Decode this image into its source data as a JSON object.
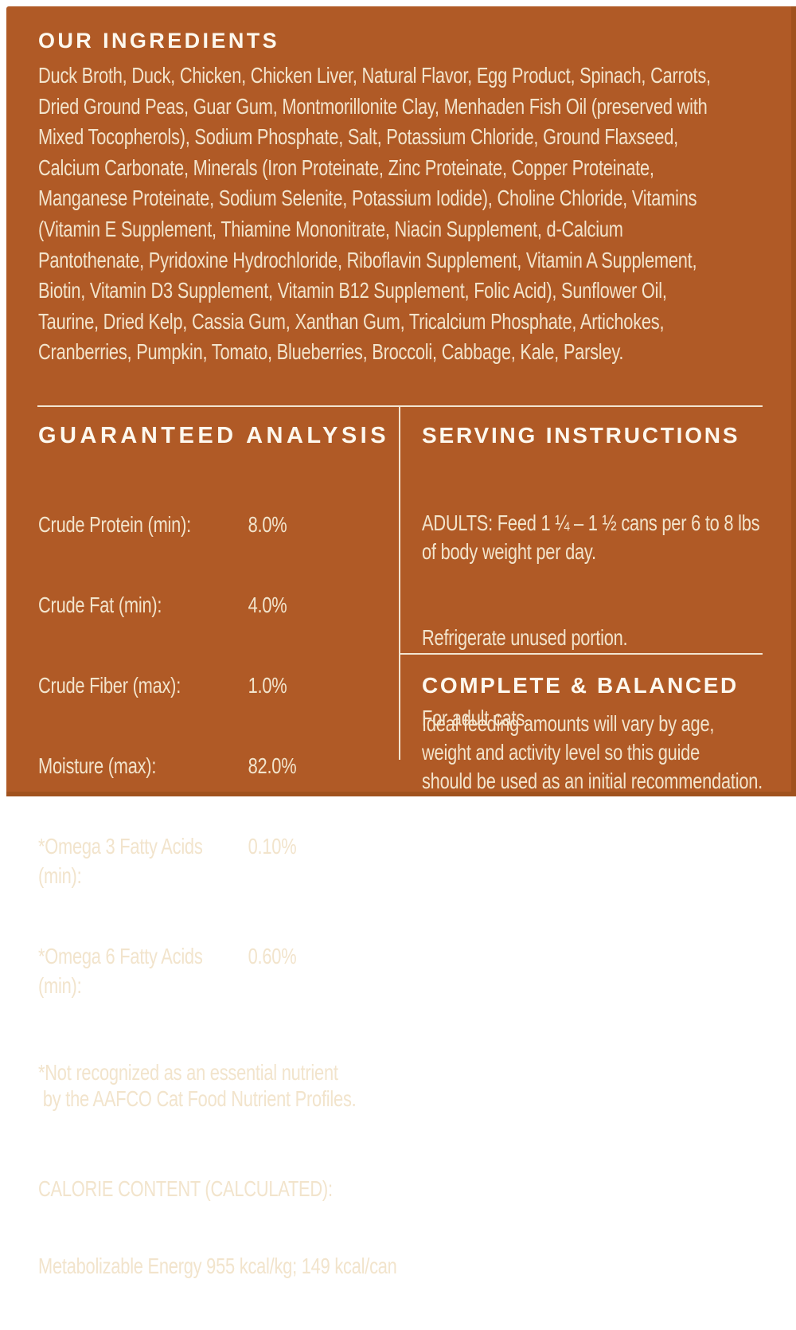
{
  "theme": {
    "page_border_color": "#ffffff",
    "background_color": "#b05a26",
    "edge_shade_color": "#a0521e",
    "heading_text_color": "#fdf8ee",
    "body_text_color": "#f2e4cc",
    "divider_color": "#f2e5d1"
  },
  "ingredients": {
    "heading": "OUR INGREDIENTS",
    "lines": [
      "Duck Broth, Duck, Chicken, Chicken Liver, Natural Flavor, Egg Product, Spinach, Carrots,",
      "Dried Ground Peas, Guar Gum, Montmorillonite Clay, Menhaden Fish Oil (preserved with",
      "Mixed Tocopherols), Sodium Phosphate, Salt, Potassium Chloride, Ground Flaxseed,",
      "Calcium Carbonate, Minerals (Iron Proteinate, Zinc Proteinate, Copper Proteinate,",
      "Manganese Proteinate, Sodium Selenite, Potassium Iodide), Choline Chloride, Vitamins",
      "(Vitamin E Supplement, Thiamine Mononitrate, Niacin Supplement, d-Calcium",
      "Pantothenate, Pyridoxine Hydrochloride, Riboflavin Supplement, Vitamin A Supplement,",
      "Biotin, Vitamin D3 Supplement, Vitamin B12 Supplement, Folic Acid), Sunflower Oil,",
      "Taurine, Dried Kelp, Cassia Gum, Xanthan Gum, Tricalcium Phosphate, Artichokes,",
      "Cranberries, Pumpkin, Tomato, Blueberries, Broccoli, Cabbage, Kale, Parsley."
    ]
  },
  "guaranteed_analysis": {
    "heading": "GUARANTEED ANALYSIS",
    "rows": [
      {
        "label": "Crude Protein (min):",
        "value": "8.0%"
      },
      {
        "label": "Crude Fat (min):",
        "value": "4.0%"
      },
      {
        "label": "Crude Fiber (max):",
        "value": "1.0%"
      },
      {
        "label": "Moisture (max):",
        "value": "82.0%"
      },
      {
        "label": "*Omega 3 Fatty Acids (min):",
        "value": "0.10%"
      },
      {
        "label": "*Omega 6 Fatty Acids (min):",
        "value": "0.60%"
      }
    ],
    "footnote_lines": [
      "*Not recognized as an essential nutrient",
      " by the AAFCO Cat Food Nutrient Profiles."
    ],
    "calorie_content": {
      "heading": "CALORIE CONTENT (CALCULATED):",
      "text": "Metabolizable Energy 955 kcal/kg; 149 kcal/can"
    }
  },
  "serving_instructions": {
    "heading": "SERVING INSTRUCTIONS",
    "paragraphs": [
      "ADULTS: Feed 1 ¼ – 1 ½ cans per 6 to 8 lbs\nof body weight per day.",
      "Refrigerate unused portion.",
      "Ideal feeding amounts will vary by age,\nweight and activity level so this guide\nshould be used as an initial recommendation."
    ]
  },
  "complete_balanced": {
    "heading": "COMPLETE & BALANCED",
    "text": "For adult cats."
  }
}
